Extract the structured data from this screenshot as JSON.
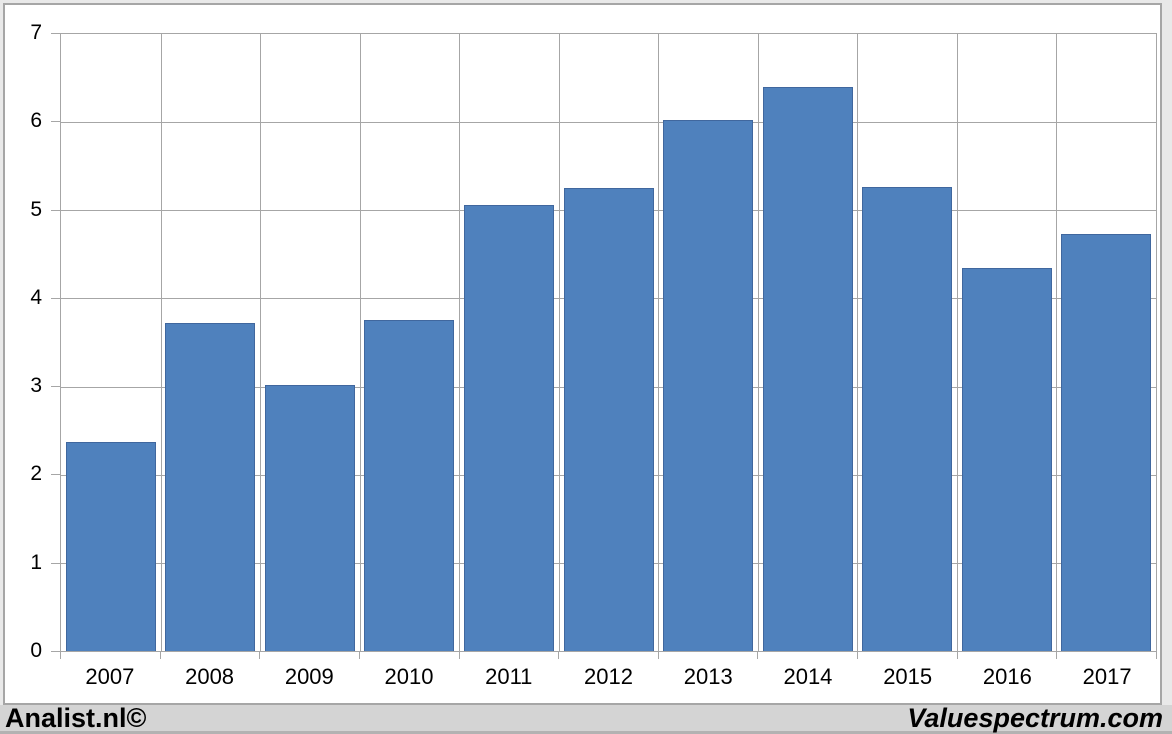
{
  "chart_data": {
    "type": "bar",
    "title": "",
    "xlabel": "",
    "ylabel": "",
    "categories": [
      "2007",
      "2008",
      "2009",
      "2010",
      "2011",
      "2012",
      "2013",
      "2014",
      "2015",
      "2016",
      "2017"
    ],
    "values": [
      2.37,
      3.72,
      3.02,
      3.75,
      5.06,
      5.25,
      6.03,
      6.4,
      5.26,
      4.35,
      4.73
    ],
    "ylim": [
      0,
      7
    ],
    "yticks": [
      "0",
      "1",
      "2",
      "3",
      "4",
      "5",
      "6",
      "7"
    ],
    "grid": true,
    "legend_position": "none",
    "bar_fill_color": "#4f81bd",
    "bar_border_color": "#40679e",
    "gridline_color": "#a6a6a6",
    "plot_background": "#ffffff"
  },
  "footer": {
    "left_text": "Analist.nl©",
    "right_text": "Valuespectrum.com",
    "background_color": "#d4d4d4"
  },
  "frame": {
    "border_color": "#a6a6a6",
    "outer_background": "#e9e9e9"
  }
}
